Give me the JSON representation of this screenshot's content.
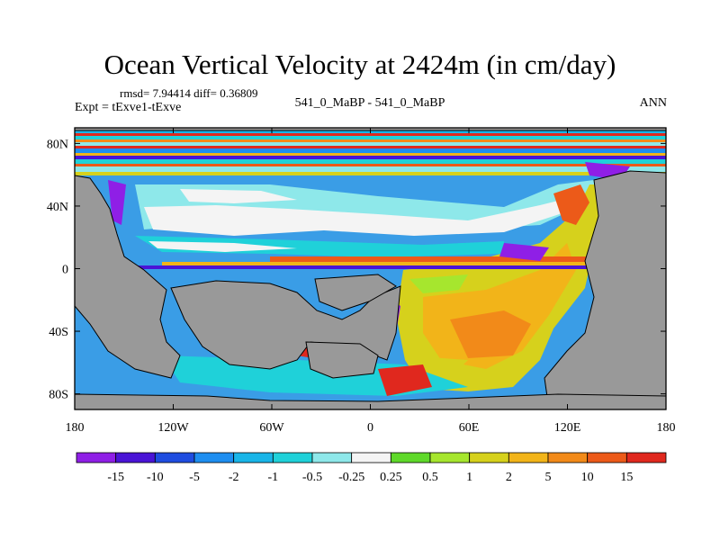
{
  "chart_data": {
    "type": "heatmap",
    "title": "Ocean Vertical Velocity at 2424m (in cm/day)",
    "stats": "rmsd= 7.94414  diff= 0.36809",
    "experiment": "Expt = tExve1-tExve",
    "case_label": "541_0_MaBP - 541_0_MaBP",
    "season": "ANN",
    "x_ticks": [
      "180",
      "120W",
      "60W",
      "0",
      "60E",
      "120E",
      "180"
    ],
    "x_tick_lons": [
      -180,
      -120,
      -60,
      0,
      60,
      120,
      180
    ],
    "y_ticks": [
      "80N",
      "40N",
      "0",
      "40S",
      "80S"
    ],
    "y_tick_lats": [
      80,
      40,
      0,
      -40,
      -80
    ],
    "xlim": [
      -180,
      180
    ],
    "ylim": [
      -90,
      90
    ],
    "colorbar": {
      "labels": [
        "-15",
        "-10",
        "-5",
        "-2",
        "-1",
        "-0.5",
        "-0.25",
        "0.25",
        "0.5",
        "1",
        "2",
        "5",
        "10",
        "15"
      ],
      "colors": [
        "#8f1fe6",
        "#4a14d6",
        "#1f4de0",
        "#1e8ef0",
        "#19b5e8",
        "#1fd1d9",
        "#8ee8ea",
        "#f4f4f4",
        "#5fd92a",
        "#a6e62e",
        "#d6d11c",
        "#f2b419",
        "#f28a19",
        "#ec5a19",
        "#e0281e"
      ]
    },
    "land_color": "#999999"
  }
}
